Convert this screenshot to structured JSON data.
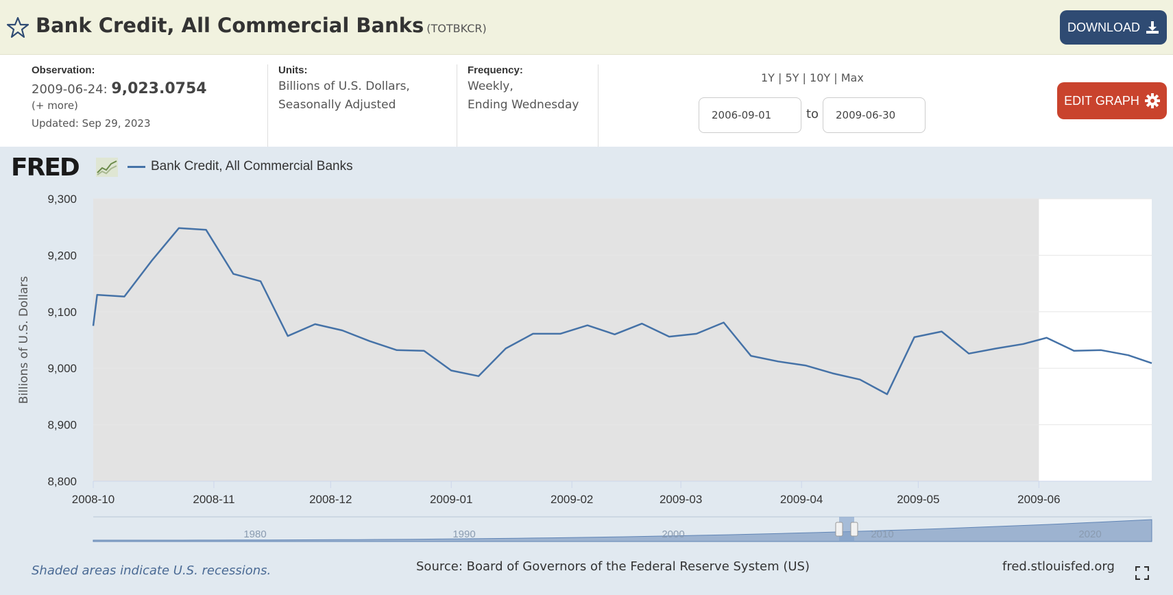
{
  "header": {
    "title": "Bank Credit, All Commercial Banks",
    "series_id": "(TOTBKCR)",
    "download_label": "DOWNLOAD",
    "star_icon": "star-outline-icon",
    "download_icon": "download-icon"
  },
  "meta": {
    "observation_label": "Observation:",
    "observation_date": "2009-06-24:",
    "observation_value": "9,023.0754",
    "more": "(+ more)",
    "updated": "Updated: Sep 29, 2023",
    "units_label": "Units:",
    "units_line1": "Billions of U.S. Dollars,",
    "units_line2": "Seasonally Adjusted",
    "frequency_label": "Frequency:",
    "frequency_line1": "Weekly,",
    "frequency_line2": "Ending Wednesday",
    "range_links": "1Y | 5Y | 10Y | Max",
    "date_from": "2006-09-01",
    "to_label": "to",
    "date_to": "2009-06-30",
    "edit_label": "EDIT GRAPH",
    "edit_icon": "gear-icon"
  },
  "chart_meta": {
    "logo": "FRED",
    "logo_icon": "fred-chart-icon",
    "recession_note": "Shaded areas indicate U.S. recessions.",
    "source": "Source: Board of Governors of the Federal Reserve System (US)",
    "site": "fred.stlouisfed.org",
    "fullscreen_icon": "fullscreen-icon",
    "colors": {
      "line": "#4572a7",
      "recession": "#e3e3e3",
      "background": "#e1e9f0",
      "plot": "#ffffff"
    }
  },
  "chart_data": {
    "type": "line",
    "title": "",
    "legend": "Bank Credit, All Commercial Banks",
    "ylabel": "Billions of U.S. Dollars",
    "xlabel": "",
    "ylim": [
      8800,
      9300
    ],
    "yticks": [
      8800,
      8900,
      9000,
      9100,
      9200,
      9300
    ],
    "ytick_labels": [
      "8,800",
      "8,900",
      "9,000",
      "9,100",
      "9,200",
      "9,300"
    ],
    "xlim": [
      "2008-10-01",
      "2009-06-30"
    ],
    "xticks": [
      "2008-10-01",
      "2008-11-01",
      "2008-12-01",
      "2009-01-01",
      "2009-02-01",
      "2009-03-01",
      "2009-04-01",
      "2009-05-01",
      "2009-06-01"
    ],
    "xtick_labels": [
      "2008-10",
      "2008-11",
      "2008-12",
      "2009-01",
      "2009-02",
      "2009-03",
      "2009-04",
      "2009-05",
      "2009-06"
    ],
    "recession": [
      "2008-10-01",
      "2009-06-01"
    ],
    "grid": true,
    "series": [
      {
        "name": "Bank Credit, All Commercial Banks",
        "x": [
          "2008-10-01",
          "2008-10-02",
          "2008-10-09",
          "2008-10-16",
          "2008-10-23",
          "2008-10-30",
          "2008-11-06",
          "2008-11-13",
          "2008-11-20",
          "2008-11-27",
          "2008-12-04",
          "2008-12-11",
          "2008-12-18",
          "2008-12-25",
          "2009-01-01",
          "2009-01-08",
          "2009-01-15",
          "2009-01-22",
          "2009-01-29",
          "2009-02-05",
          "2009-02-12",
          "2009-02-19",
          "2009-02-26",
          "2009-03-05",
          "2009-03-12",
          "2009-03-19",
          "2009-03-26",
          "2009-04-02",
          "2009-04-09",
          "2009-04-16",
          "2009-04-23",
          "2009-04-30",
          "2009-05-07",
          "2009-05-14",
          "2009-05-21",
          "2009-05-28",
          "2009-06-03",
          "2009-06-10",
          "2009-06-17",
          "2009-06-24",
          "2009-06-30"
        ],
        "values": [
          9075,
          9130,
          9127,
          9190,
          9248,
          9245,
          9167,
          9154,
          9057,
          9078,
          9067,
          9048,
          9032,
          9031,
          8996,
          8986,
          9035,
          9061,
          9061,
          9076,
          9060,
          9079,
          9056,
          9061,
          9081,
          9022,
          9012,
          9005,
          8991,
          8980,
          8954,
          9055,
          9065,
          9026,
          9035,
          9043,
          9054,
          9031,
          9032,
          9023,
          9009
        ]
      }
    ],
    "navigator": {
      "tick_labels": [
        "1980",
        "1990",
        "2000",
        "2010",
        "2020"
      ]
    }
  }
}
